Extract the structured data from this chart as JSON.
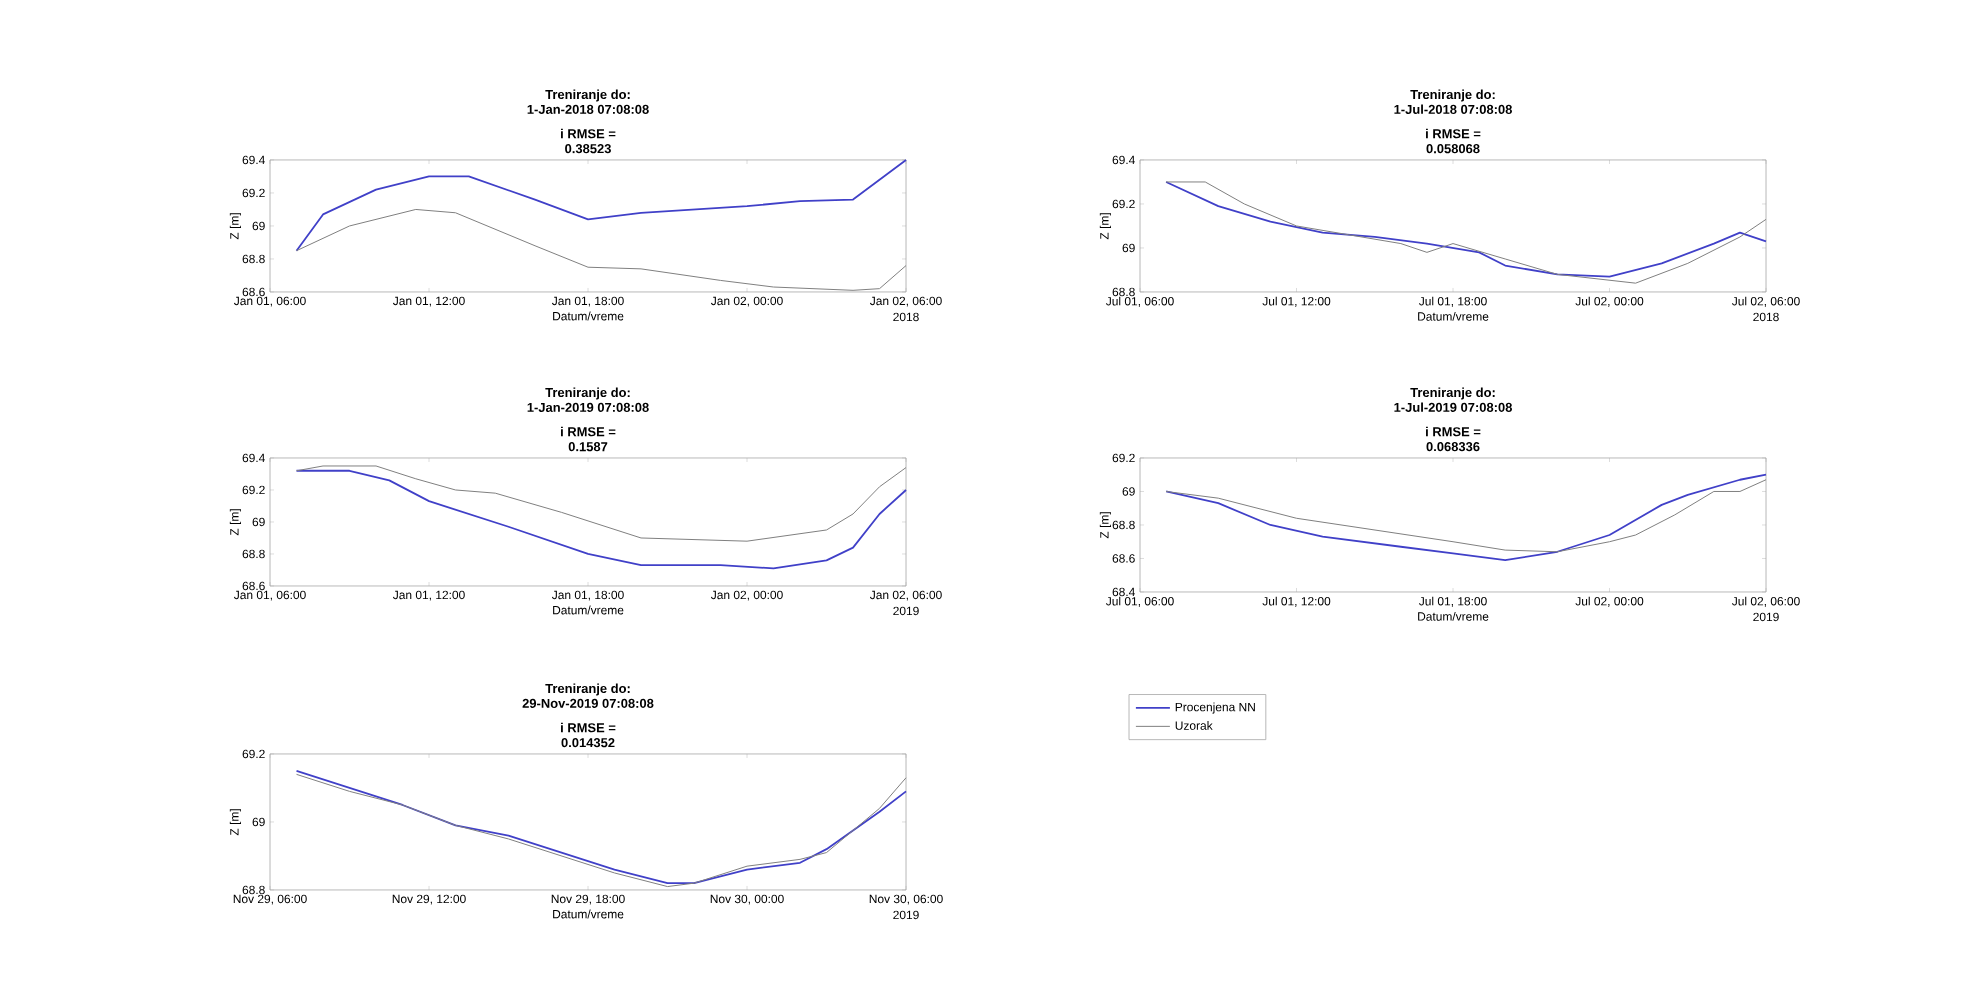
{
  "chart_data": [
    {
      "type": "line",
      "title": "Treniranje do:",
      "subtitle": "1-Jan-2018 07:08:08",
      "annotations": [
        "i RMSE = 0.38523",
        "2018"
      ],
      "xlabel": "Datum/vreme",
      "ylabel": "Z [m]",
      "xlim": [
        "2018-01-01T06:00",
        "2018-01-02T06:00"
      ],
      "ylim": [
        68.6,
        69.4
      ],
      "yticks": [
        68.6,
        68.8,
        69,
        69.2,
        69.4
      ],
      "xticks": [
        {
          "value": "2018-01-01T06:00",
          "label": "Jan 01, 06:00"
        },
        {
          "value": "2018-01-01T12:00",
          "label": "Jan 01, 12:00"
        },
        {
          "value": "2018-01-01T18:00",
          "label": "Jan 01, 18:00"
        },
        {
          "value": "2018-01-02T00:00",
          "label": "Jan 02, 00:00"
        },
        {
          "value": "2018-01-02T06:00",
          "label": "Jan 02, 06:00"
        }
      ],
      "series": [
        {
          "color": "#4040c8",
          "x": [
            "2018-01-01T07:00",
            "2018-01-01T08:00",
            "2018-01-01T10:00",
            "2018-01-01T12:00",
            "2018-01-01T13:30",
            "2018-01-01T16:00",
            "2018-01-01T18:00",
            "2018-01-01T20:00",
            "2018-01-02T00:00",
            "2018-01-02T02:00",
            "2018-01-02T04:00",
            "2018-01-02T06:00"
          ],
          "values": [
            68.85,
            69.07,
            69.22,
            69.3,
            69.3,
            69.16,
            69.04,
            69.08,
            69.12,
            69.15,
            69.16,
            69.4
          ]
        },
        {
          "color": "#808080",
          "x": [
            "2018-01-01T07:00",
            "2018-01-01T09:00",
            "2018-01-01T11:30",
            "2018-01-01T13:00",
            "2018-01-01T16:00",
            "2018-01-01T18:00",
            "2018-01-01T20:00",
            "2018-01-01T23:00",
            "2018-01-02T01:00",
            "2018-01-02T04:00",
            "2018-01-02T05:00",
            "2018-01-02T06:00"
          ],
          "values": [
            68.85,
            69.0,
            69.1,
            69.08,
            68.88,
            68.75,
            68.74,
            68.67,
            68.63,
            68.61,
            68.62,
            68.76
          ]
        }
      ]
    },
    {
      "type": "line",
      "title": "Treniranje do:",
      "subtitle": "1-Jul-2018 07:08:08",
      "annotations": [
        "i RMSE = 0.058068",
        "2018"
      ],
      "xlabel": "Datum/vreme",
      "ylabel": "Z [m]",
      "xlim": [
        "2018-07-01T06:00",
        "2018-07-02T06:00"
      ],
      "ylim": [
        68.8,
        69.4
      ],
      "yticks": [
        68.8,
        69,
        69.2,
        69.4
      ],
      "xticks": [
        {
          "value": "2018-07-01T06:00",
          "label": "Jul 01, 06:00"
        },
        {
          "value": "2018-07-01T12:00",
          "label": "Jul 01, 12:00"
        },
        {
          "value": "2018-07-01T18:00",
          "label": "Jul 01, 18:00"
        },
        {
          "value": "2018-07-02T00:00",
          "label": "Jul 02, 00:00"
        },
        {
          "value": "2018-07-02T06:00",
          "label": "Jul 02, 06:00"
        }
      ],
      "series": [
        {
          "color": "#4040c8",
          "x": [
            "2018-07-01T07:00",
            "2018-07-01T09:00",
            "2018-07-01T11:00",
            "2018-07-01T13:00",
            "2018-07-01T15:00",
            "2018-07-01T17:00",
            "2018-07-01T19:00",
            "2018-07-01T20:00",
            "2018-07-01T22:00",
            "2018-07-02T00:00",
            "2018-07-02T02:00",
            "2018-07-02T04:00",
            "2018-07-02T05:00",
            "2018-07-02T06:00"
          ],
          "values": [
            69.3,
            69.19,
            69.12,
            69.07,
            69.05,
            69.02,
            68.98,
            68.92,
            68.88,
            68.87,
            68.93,
            69.02,
            69.07,
            69.03
          ]
        },
        {
          "color": "#808080",
          "x": [
            "2018-07-01T07:00",
            "2018-07-01T08:30",
            "2018-07-01T10:00",
            "2018-07-01T12:00",
            "2018-07-01T14:00",
            "2018-07-01T16:00",
            "2018-07-01T17:00",
            "2018-07-01T18:00",
            "2018-07-01T20:00",
            "2018-07-01T22:00",
            "2018-07-02T01:00",
            "2018-07-02T03:00",
            "2018-07-02T05:00",
            "2018-07-02T06:00"
          ],
          "values": [
            69.3,
            69.3,
            69.2,
            69.1,
            69.06,
            69.02,
            68.98,
            69.02,
            68.95,
            68.88,
            68.84,
            68.93,
            69.05,
            69.13
          ]
        }
      ]
    },
    {
      "type": "line",
      "title": "Treniranje do:",
      "subtitle": "1-Jan-2019 07:08:08",
      "annotations": [
        "i RMSE = 0.1587",
        "2019"
      ],
      "xlabel": "Datum/vreme",
      "ylabel": "Z [m]",
      "xlim": [
        "2019-01-01T06:00",
        "2019-01-02T06:00"
      ],
      "ylim": [
        68.6,
        69.4
      ],
      "yticks": [
        68.6,
        68.8,
        69,
        69.2,
        69.4
      ],
      "xticks": [
        {
          "value": "2019-01-01T06:00",
          "label": "Jan 01, 06:00"
        },
        {
          "value": "2019-01-01T12:00",
          "label": "Jan 01, 12:00"
        },
        {
          "value": "2019-01-01T18:00",
          "label": "Jan 01, 18:00"
        },
        {
          "value": "2019-01-02T00:00",
          "label": "Jan 02, 00:00"
        },
        {
          "value": "2019-01-02T06:00",
          "label": "Jan 02, 06:00"
        }
      ],
      "series": [
        {
          "color": "#4040c8",
          "x": [
            "2019-01-01T07:00",
            "2019-01-01T09:00",
            "2019-01-01T10:30",
            "2019-01-01T12:00",
            "2019-01-01T15:00",
            "2019-01-01T18:00",
            "2019-01-01T20:00",
            "2019-01-01T23:00",
            "2019-01-02T01:00",
            "2019-01-02T03:00",
            "2019-01-02T04:00",
            "2019-01-02T05:00",
            "2019-01-02T06:00"
          ],
          "values": [
            69.32,
            69.32,
            69.26,
            69.13,
            68.97,
            68.8,
            68.73,
            68.73,
            68.71,
            68.76,
            68.84,
            69.05,
            69.2
          ]
        },
        {
          "color": "#808080",
          "x": [
            "2019-01-01T07:00",
            "2019-01-01T08:00",
            "2019-01-01T10:00",
            "2019-01-01T11:30",
            "2019-01-01T13:00",
            "2019-01-01T14:30",
            "2019-01-01T17:00",
            "2019-01-01T20:00",
            "2019-01-02T00:00",
            "2019-01-02T03:00",
            "2019-01-02T04:00",
            "2019-01-02T05:00",
            "2019-01-02T06:00"
          ],
          "values": [
            69.32,
            69.35,
            69.35,
            69.27,
            69.2,
            69.18,
            69.06,
            68.9,
            68.88,
            68.95,
            69.05,
            69.22,
            69.34
          ]
        }
      ]
    },
    {
      "type": "line",
      "title": "Treniranje do:",
      "subtitle": "1-Jul-2019 07:08:08",
      "annotations": [
        "i RMSE = 0.068336",
        "2019"
      ],
      "xlabel": "Datum/vreme",
      "ylabel": "Z [m]",
      "xlim": [
        "2019-07-01T06:00",
        "2019-07-02T06:00"
      ],
      "ylim": [
        68.4,
        69.2
      ],
      "yticks": [
        68.4,
        68.6,
        68.8,
        69,
        69.2
      ],
      "xticks": [
        {
          "value": "2019-07-01T06:00",
          "label": "Jul 01, 06:00"
        },
        {
          "value": "2019-07-01T12:00",
          "label": "Jul 01, 12:00"
        },
        {
          "value": "2019-07-01T18:00",
          "label": "Jul 01, 18:00"
        },
        {
          "value": "2019-07-02T00:00",
          "label": "Jul 02, 00:00"
        },
        {
          "value": "2019-07-02T06:00",
          "label": "Jul 02, 06:00"
        }
      ],
      "series": [
        {
          "color": "#4040c8",
          "x": [
            "2019-07-01T07:00",
            "2019-07-01T09:00",
            "2019-07-01T11:00",
            "2019-07-01T13:00",
            "2019-07-01T16:00",
            "2019-07-01T18:00",
            "2019-07-01T20:00",
            "2019-07-01T22:00",
            "2019-07-02T00:00",
            "2019-07-02T02:00",
            "2019-07-02T03:00",
            "2019-07-02T05:00",
            "2019-07-02T06:00"
          ],
          "values": [
            69.0,
            68.93,
            68.8,
            68.73,
            68.67,
            68.63,
            68.59,
            68.64,
            68.74,
            68.92,
            68.98,
            69.07,
            69.1
          ]
        },
        {
          "color": "#808080",
          "x": [
            "2019-07-01T07:00",
            "2019-07-01T09:00",
            "2019-07-01T12:00",
            "2019-07-01T15:00",
            "2019-07-01T18:00",
            "2019-07-01T20:00",
            "2019-07-01T22:00",
            "2019-07-02T00:00",
            "2019-07-02T01:00",
            "2019-07-02T02:30",
            "2019-07-02T04:00",
            "2019-07-02T05:00",
            "2019-07-02T06:00"
          ],
          "values": [
            69.0,
            68.96,
            68.84,
            68.77,
            68.7,
            68.65,
            68.64,
            68.7,
            68.74,
            68.86,
            69.0,
            69.0,
            69.07
          ]
        }
      ]
    },
    {
      "type": "line",
      "title": "Treniranje do:",
      "subtitle": "29-Nov-2019 07:08:08",
      "annotations": [
        "i RMSE = 0.014352",
        "2019"
      ],
      "xlabel": "Datum/vreme",
      "ylabel": "Z [m]",
      "xlim": [
        "2019-11-29T06:00",
        "2019-11-30T06:00"
      ],
      "ylim": [
        68.8,
        69.2
      ],
      "yticks": [
        68.8,
        69,
        69.2
      ],
      "legend": "right",
      "xticks": [
        {
          "value": "2019-11-29T06:00",
          "label": "Nov 29, 06:00"
        },
        {
          "value": "2019-11-29T12:00",
          "label": "Nov 29, 12:00"
        },
        {
          "value": "2019-11-29T18:00",
          "label": "Nov 29, 18:00"
        },
        {
          "value": "2019-11-30T00:00",
          "label": "Nov 30, 00:00"
        },
        {
          "value": "2019-11-30T06:00",
          "label": "Nov 30, 06:00"
        }
      ],
      "x": [
        "2019-11-29T07:00",
        "2019-11-29T09:00",
        "2019-11-29T11:00",
        "2019-11-29T13:00",
        "2019-11-29T15:00",
        "2019-11-29T17:00",
        "2019-11-29T19:00",
        "2019-11-29T21:00",
        "2019-11-29T22:00",
        "2019-11-30T00:00",
        "2019-11-30T02:00",
        "2019-11-30T03:00",
        "2019-11-30T05:00",
        "2019-11-30T06:00"
      ],
      "series": [
        {
          "name": "Procenjena NN",
          "color": "#4040c8",
          "values": [
            69.15,
            69.1,
            69.05,
            68.99,
            68.96,
            68.91,
            68.86,
            68.82,
            68.82,
            68.86,
            68.88,
            68.92,
            69.03,
            69.09
          ]
        },
        {
          "name": "Uzorak",
          "color": "#808080",
          "values": [
            69.14,
            69.09,
            69.05,
            68.99,
            68.95,
            68.9,
            68.85,
            68.81,
            68.82,
            68.87,
            68.89,
            68.91,
            69.04,
            69.13
          ]
        }
      ]
    }
  ]
}
